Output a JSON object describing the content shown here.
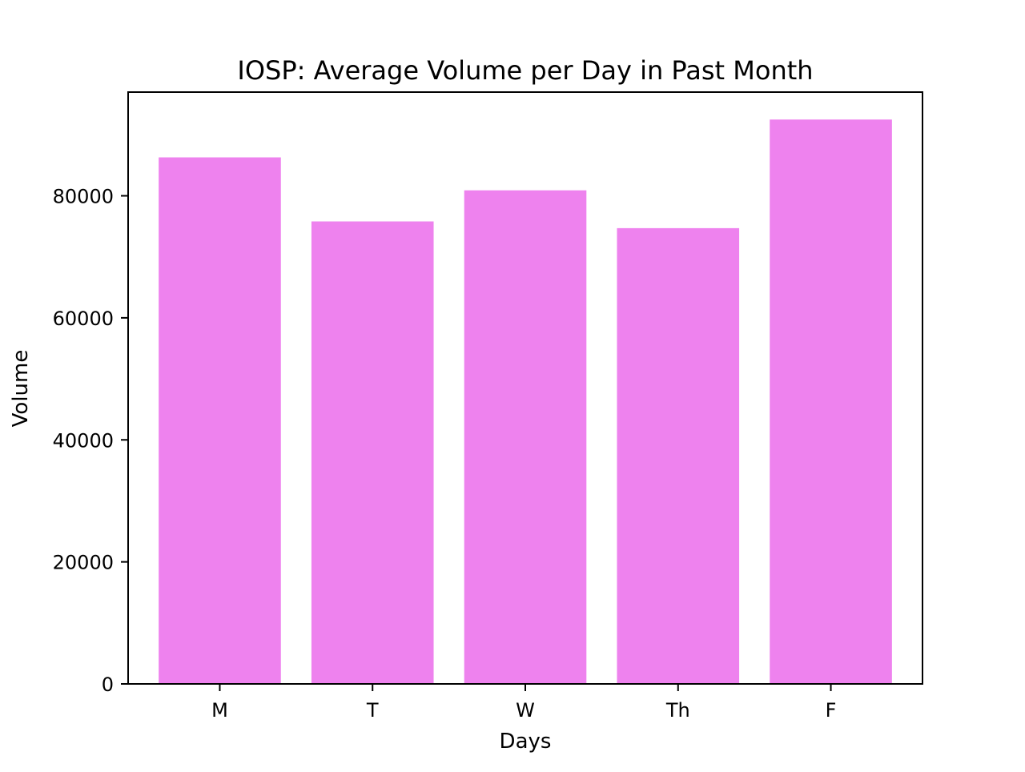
{
  "chart_data": {
    "type": "bar",
    "title": "IOSP: Average Volume per Day in Past Month",
    "xlabel": "Days",
    "ylabel": "Volume",
    "categories": [
      "M",
      "T",
      "W",
      "Th",
      "F"
    ],
    "values": [
      86300,
      75800,
      80900,
      74700,
      92500
    ],
    "ylim": [
      0,
      97000
    ],
    "yticks": [
      0,
      20000,
      40000,
      60000,
      80000
    ],
    "ytick_labels": [
      "0",
      "20000",
      "40000",
      "60000",
      "80000"
    ],
    "bar_color": "#ee82ee",
    "grid": false,
    "legend": "none"
  }
}
